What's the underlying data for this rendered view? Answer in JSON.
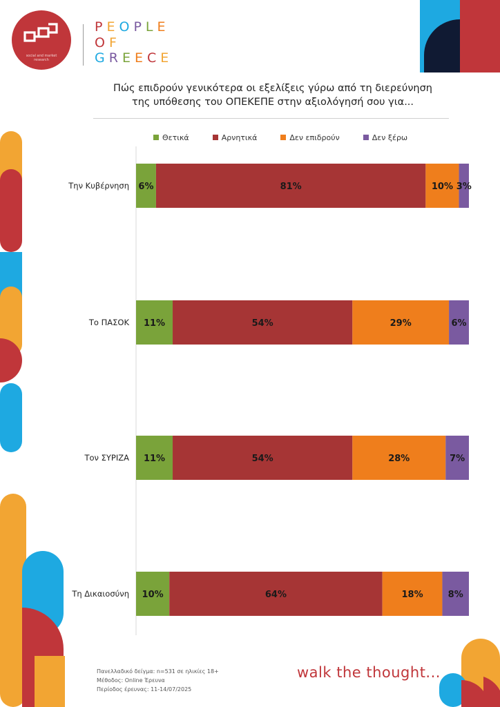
{
  "brand": {
    "logo_subtitle": "social and market research",
    "name_lines": [
      "PEOPLE",
      "OF",
      "GREECE"
    ],
    "tagline": "walk the thought..."
  },
  "title_lines": [
    "Πώς επιδρούν γενικότερα οι εξελίξεις γύρω από τη διερεύνηση",
    "της υπόθεσης του ΟΠΕΚΕΠΕ στην αξιολόγησή σου για..."
  ],
  "footer": {
    "sample": "Πανελλαδικό δείγμα: n=531 σε ηλικίες 18+",
    "method": "Μέθοδος: Online Έρευνα",
    "period": "Περίοδος έρευνας:  11-14/07/2025"
  },
  "colors": {
    "accent_red": "#c0363a",
    "orange": "#f2a533",
    "blue": "#1ea9e1",
    "navy": "#101a33",
    "positive": "#7aa33a",
    "negative": "#a63535",
    "no_effect": "#ef7e1c",
    "dont_know": "#7a5aa0"
  },
  "chart_data": {
    "type": "bar",
    "orientation": "horizontal",
    "stacked": true,
    "percent_stacked": true,
    "categories": [
      "Την Κυβέρνηση",
      "Το ΠΑΣΟΚ",
      "Τον ΣΥΡΙΖΑ",
      "Τη Δικαιοσύνη"
    ],
    "series": [
      {
        "name": "Θετικά",
        "color": "#7aa33a",
        "values": [
          6,
          11,
          11,
          10
        ]
      },
      {
        "name": "Αρνητικά",
        "color": "#a63535",
        "values": [
          81,
          54,
          54,
          64
        ]
      },
      {
        "name": "Δεν επιδρούν",
        "color": "#ef7e1c",
        "values": [
          10,
          29,
          28,
          18
        ]
      },
      {
        "name": "Δεν ξέρω",
        "color": "#7a5aa0",
        "values": [
          3,
          6,
          7,
          8
        ]
      }
    ],
    "value_suffix": "%",
    "legend_position": "top",
    "grid": false
  }
}
